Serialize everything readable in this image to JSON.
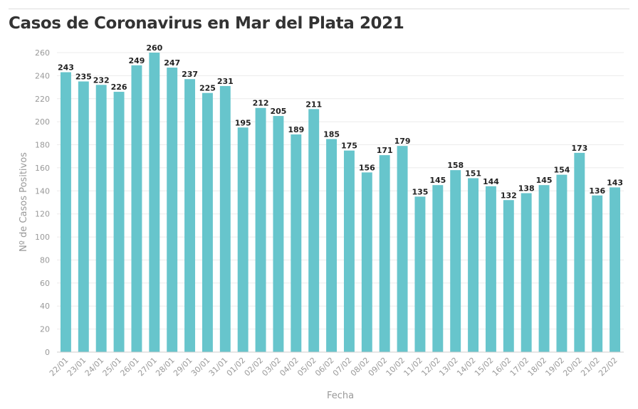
{
  "chart_data": {
    "type": "bar",
    "title": "Casos de Coronavirus en Mar del Plata 2021",
    "xlabel": "Fecha",
    "ylabel": "Nº de Casos Positivos",
    "ylim": [
      0,
      260
    ],
    "yticks": [
      0,
      20,
      40,
      60,
      80,
      100,
      120,
      140,
      160,
      180,
      200,
      220,
      240,
      260
    ],
    "grid": true,
    "bar_color": "#67c5cc",
    "categories": [
      "22/01",
      "23/01",
      "24/01",
      "25/01",
      "26/01",
      "27/01",
      "28/01",
      "29/01",
      "30/01",
      "31/01",
      "01/02",
      "02/02",
      "03/02",
      "04/02",
      "05/02",
      "06/02",
      "07/02",
      "08/02",
      "09/02",
      "10/02",
      "11/02",
      "12/02",
      "13/02",
      "14/02",
      "15/02",
      "16/02",
      "17/02",
      "18/02",
      "19/02",
      "20/02",
      "21/02",
      "22/02"
    ],
    "values": [
      243,
      235,
      232,
      226,
      249,
      260,
      247,
      237,
      225,
      231,
      195,
      212,
      205,
      189,
      211,
      185,
      175,
      156,
      171,
      179,
      135,
      145,
      158,
      151,
      144,
      132,
      138,
      145,
      154,
      173,
      136,
      143
    ]
  }
}
